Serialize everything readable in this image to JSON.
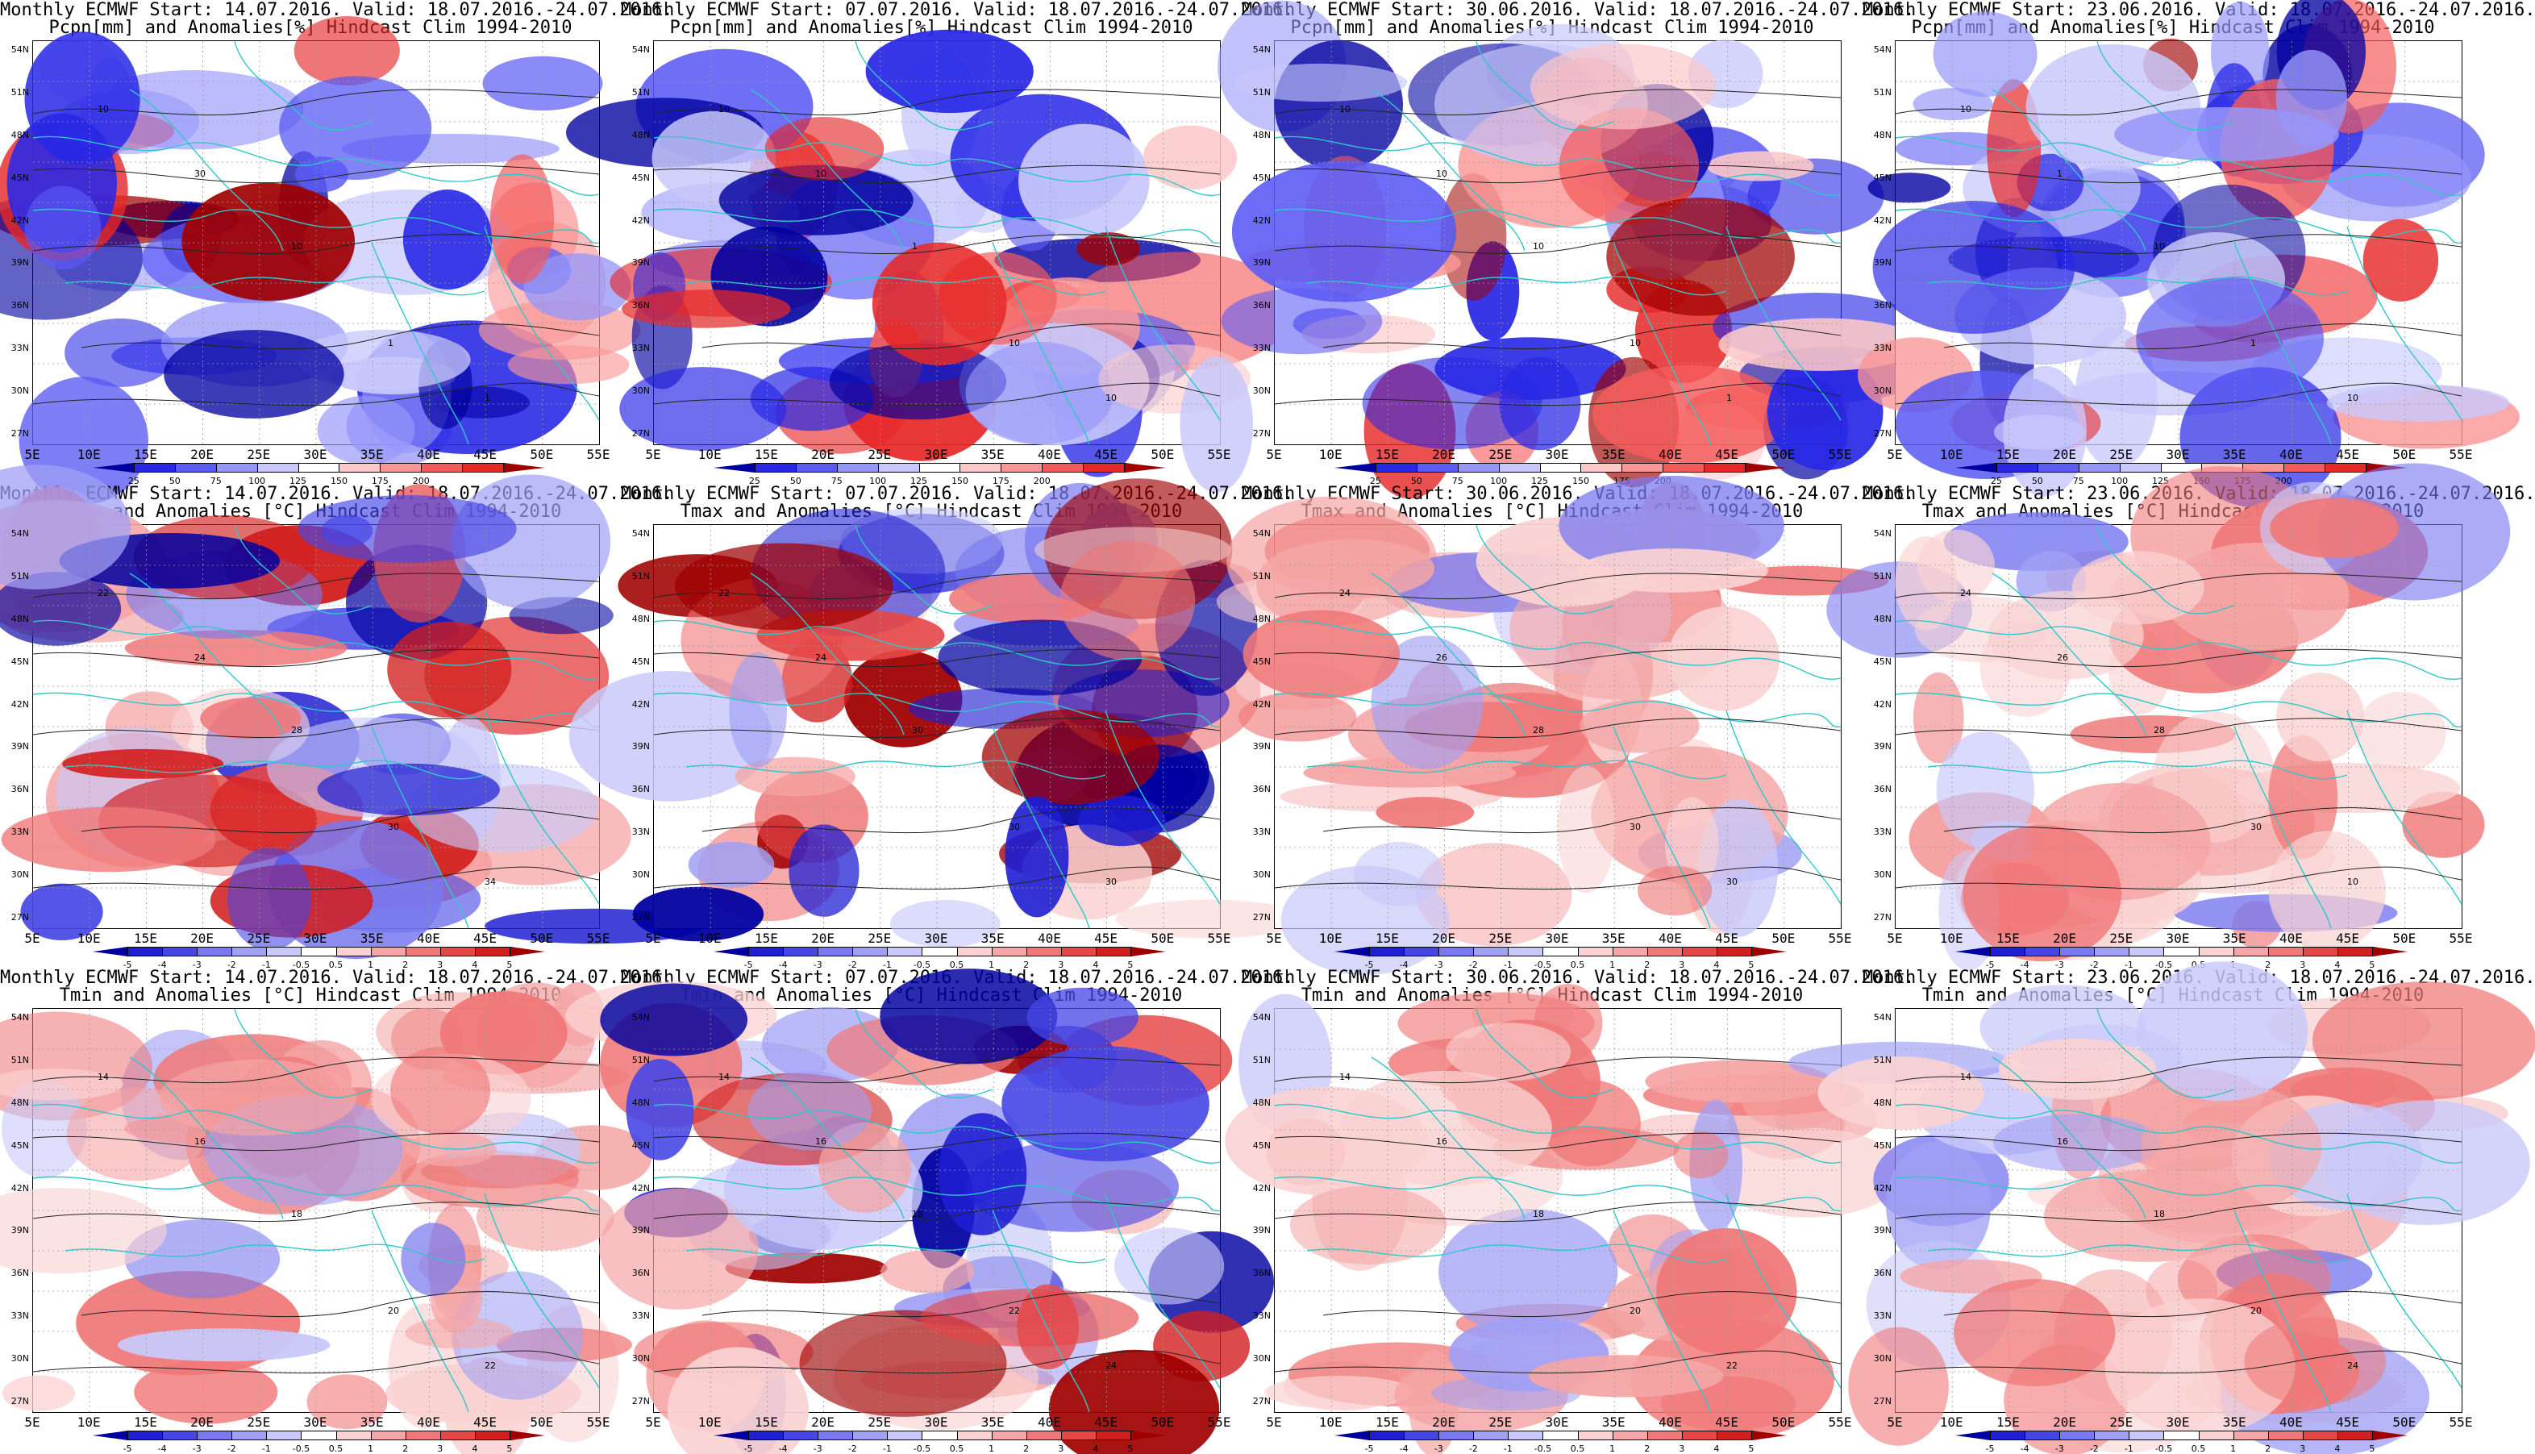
{
  "panels": [
    {
      "title1": "Monthly ECMWF Start: 14.07.2016. Valid: 18.07.2016.-24.07.2016.",
      "title2": "Pcpn[mm] and Anomalies[%] Hindcast Clim 1994-2010",
      "variable": "precip",
      "anomaly": "dry",
      "contours": [
        "10",
        "30",
        "10",
        "1",
        "1"
      ]
    },
    {
      "title1": "Monthly ECMWF Start: 07.07.2016. Valid: 18.07.2016.-24.07.2016.",
      "title2": "Pcpn[mm] and Anomalies[%] Hindcast Clim 1994-2010",
      "variable": "precip",
      "anomaly": "dry",
      "contours": [
        "10",
        "10",
        "1",
        "10",
        "10"
      ]
    },
    {
      "title1": "Monthly ECMWF Start: 30.06.2016. Valid: 18.07.2016.-24.07.2016.",
      "title2": "Pcpn[mm] and Anomalies[%] Hindcast Clim 1994-2010",
      "variable": "precip",
      "anomaly": "mixed",
      "contours": [
        "10",
        "10",
        "10",
        "10",
        "1"
      ]
    },
    {
      "title1": "Monthly ECMWF Start: 23.06.2016. Valid: 18.07.2016.-24.07.2016.",
      "title2": "Pcpn[mm] and Anomalies[%] Hindcast Clim 1994-2010",
      "variable": "precip",
      "anomaly": "dry",
      "contours": [
        "10",
        "1",
        "10",
        "1",
        "10"
      ]
    },
    {
      "title1": "Monthly ECMWF Start: 14.07.2016. Valid: 18.07.2016.-24.07.2016.",
      "title2": "Tmax and Anomalies [°C] Hindcast Clim 1994-2010",
      "variable": "temp",
      "anomaly": "mixed",
      "contours": [
        "22",
        "24",
        "28",
        "30",
        "34"
      ]
    },
    {
      "title1": "Monthly ECMWF Start: 07.07.2016. Valid: 18.07.2016.-24.07.2016.",
      "title2": "Tmax and Anomalies [°C] Hindcast Clim 1994-2010",
      "variable": "temp",
      "anomaly": "mixed",
      "contours": [
        "22",
        "24",
        "30",
        "30",
        "30"
      ]
    },
    {
      "title1": "Monthly ECMWF Start: 30.06.2016. Valid: 18.07.2016.-24.07.2016.",
      "title2": "Tmax and Anomalies [°C] Hindcast Clim 1994-2010",
      "variable": "temp",
      "anomaly": "warm",
      "contours": [
        "24",
        "26",
        "28",
        "30",
        "30"
      ]
    },
    {
      "title1": "Monthly ECMWF Start: 23.06.2016. Valid: 18.07.2016.-24.07.2016.",
      "title2": "Tmax and Anomalies [°C] Hindcast Clim 1994-2010",
      "variable": "temp",
      "anomaly": "warm",
      "contours": [
        "24",
        "26",
        "28",
        "30",
        "10"
      ]
    },
    {
      "title1": "Monthly ECMWF Start: 14.07.2016. Valid: 18.07.2016.-24.07.2016.",
      "title2": "Tmin and Anomalies [°C] Hindcast Clim 1994-2010",
      "variable": "temp",
      "anomaly": "warm",
      "contours": [
        "14",
        "16",
        "18",
        "20",
        "22"
      ]
    },
    {
      "title1": "Monthly ECMWF Start: 07.07.2016. Valid: 18.07.2016.-24.07.2016.",
      "title2": "Tmin and Anomalies [°C] Hindcast Clim 1994-2010",
      "variable": "temp",
      "anomaly": "mixed",
      "contours": [
        "14",
        "16",
        "18",
        "22",
        "24"
      ]
    },
    {
      "title1": "Monthly ECMWF Start: 30.06.2016. Valid: 18.07.2016.-24.07.2016.",
      "title2": "Tmin and Anomalies [°C] Hindcast Clim 1994-2010",
      "variable": "temp",
      "anomaly": "warm",
      "contours": [
        "14",
        "16",
        "18",
        "20",
        "22"
      ]
    },
    {
      "title1": "Monthly ECMWF Start: 23.06.2016. Valid: 18.07.2016.-24.07.2016.",
      "title2": "Tmin and Anomalies [°C] Hindcast Clim 1994-2010",
      "variable": "temp",
      "anomaly": "warm",
      "contours": [
        "14",
        "16",
        "18",
        "20",
        "24"
      ]
    }
  ],
  "axes": {
    "lat_labels": [
      "54N",
      "51N",
      "48N",
      "45N",
      "42N",
      "39N",
      "36N",
      "33N",
      "30N",
      "27N"
    ],
    "lon_labels": [
      "5E",
      "10E",
      "15E",
      "20E",
      "25E",
      "30E",
      "35E",
      "40E",
      "45E",
      "50E",
      "55E"
    ]
  },
  "colorbars": {
    "precip": {
      "labels": [
        "25",
        "50",
        "75",
        "100",
        "125",
        "150",
        "175",
        "200"
      ],
      "colors": [
        "#0000a0",
        "#2828e6",
        "#5a5af5",
        "#9696fa",
        "#c8c8fc",
        "#ffffff",
        "#fcc8c8",
        "#fa9696",
        "#f55a5a",
        "#e62828",
        "#a00000"
      ]
    },
    "temp": {
      "labels": [
        "-5",
        "-4",
        "-3",
        "-2",
        "-1",
        "-0.5",
        "0.5",
        "1",
        "2",
        "3",
        "4",
        "5"
      ],
      "colors": [
        "#0000a0",
        "#1e1ed2",
        "#4646e6",
        "#7878f0",
        "#a0a0f5",
        "#c8c8fa",
        "#ffffff",
        "#fad2d2",
        "#f5a5a5",
        "#f07878",
        "#e64646",
        "#d21e1e",
        "#a00000"
      ]
    }
  }
}
